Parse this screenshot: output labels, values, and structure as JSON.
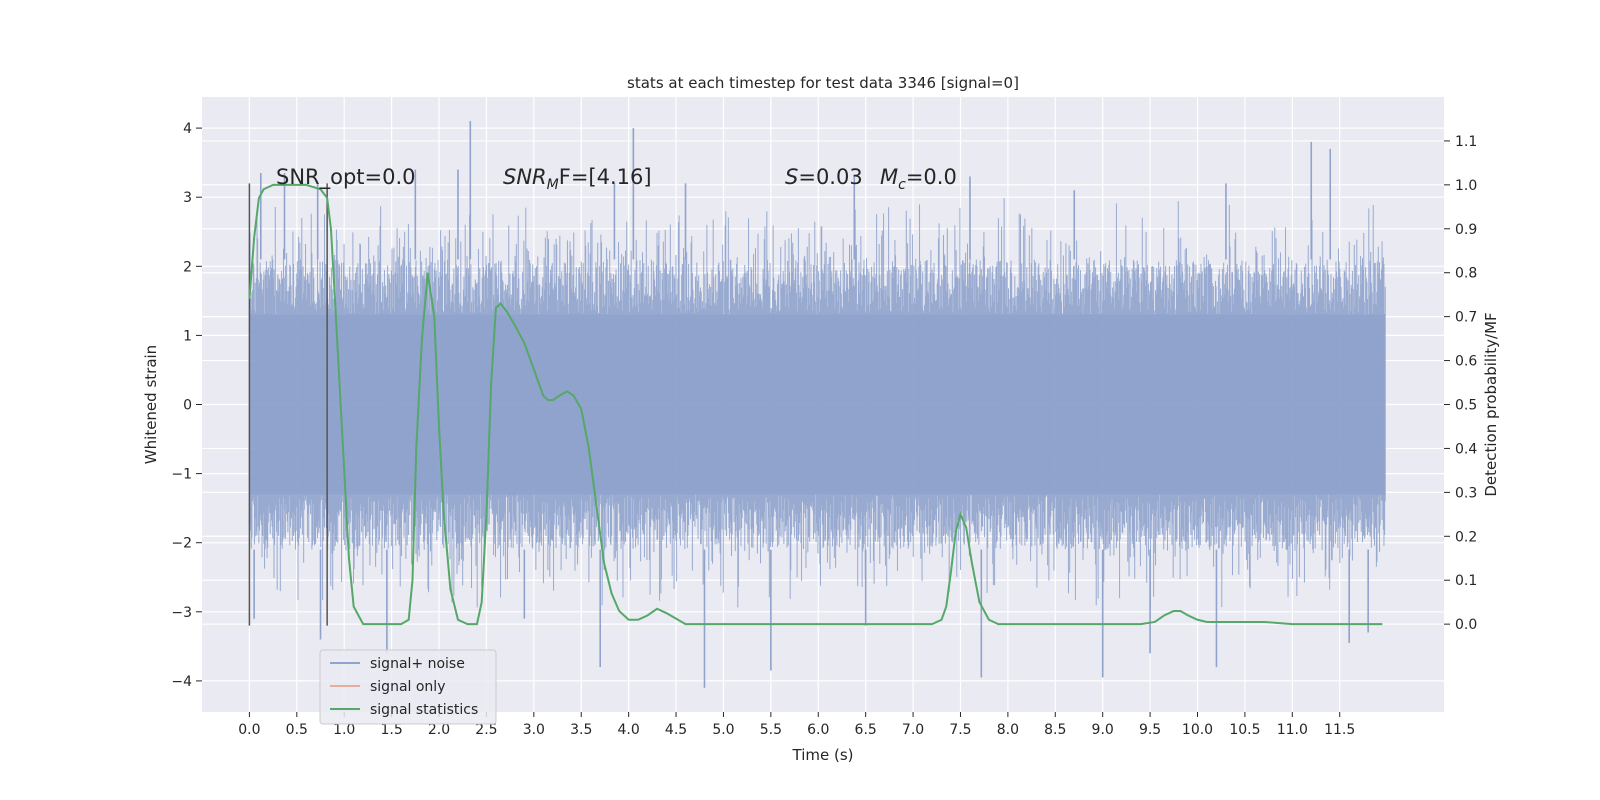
{
  "chart_data": {
    "type": "line",
    "title": "stats at each timestep for test data 3346 [signal=0]",
    "xlabel": "Time (s)",
    "ylabel_left": "Whitened strain",
    "ylabel_right": "Detection probability/MF",
    "xlim": [
      -0.5,
      12.6
    ],
    "ylim_left": [
      -4.45,
      4.45
    ],
    "ylim_right": [
      -0.2,
      1.2
    ],
    "x_ticks": [
      0.0,
      0.5,
      1.0,
      1.5,
      2.0,
      2.5,
      3.0,
      3.5,
      4.0,
      4.5,
      5.0,
      5.5,
      6.0,
      6.5,
      7.0,
      7.5,
      8.0,
      8.5,
      9.0,
      9.5,
      10.0,
      10.5,
      11.0,
      11.5
    ],
    "x_tick_labels": [
      "0.0",
      "0.5",
      "1.0",
      "1.5",
      "2.0",
      "2.5",
      "3.0",
      "3.5",
      "4.0",
      "4.5",
      "5.0",
      "5.5",
      "6.0",
      "6.5",
      "7.0",
      "7.5",
      "8.0",
      "8.5",
      "9.0",
      "9.5",
      "10.0",
      "10.5",
      "11.0",
      "11.5"
    ],
    "y_left_ticks": [
      -4,
      -3,
      -2,
      -1,
      0,
      1,
      2,
      3,
      4
    ],
    "y_left_tick_labels": [
      "−4",
      "−3",
      "−2",
      "−1",
      "0",
      "1",
      "2",
      "3",
      "4"
    ],
    "y_right_ticks": [
      0.0,
      0.1,
      0.2,
      0.3,
      0.4,
      0.5,
      0.6,
      0.7,
      0.8,
      0.9,
      1.0,
      1.1
    ],
    "y_right_tick_labels": [
      "0.0",
      "0.1",
      "0.2",
      "0.3",
      "0.4",
      "0.5",
      "0.6",
      "0.7",
      "0.8",
      "0.9",
      "1.0",
      "1.1"
    ],
    "grid": true,
    "legend_position": "lower-left",
    "annotations": {
      "snr_opt": "SNR_opt=0.0",
      "snr_mf_base": "SNR",
      "snr_mf_sub": "M",
      "snr_mf_rest": "F=[4.16]",
      "s_base": "S",
      "s_rest": "=0.03",
      "mc_base": "M",
      "mc_sub": "c",
      "mc_rest": "=0.0"
    },
    "vertical_lines_x": [
      0.0,
      0.82
    ],
    "vertical_lines_range": [
      -3.2,
      3.2
    ],
    "series": [
      {
        "name": "signal+ noise",
        "color": "#8fa3cc",
        "axis": "left",
        "description_range": [
          0.0,
          11.98
        ],
        "envelope": {
          "core_band": [
            -1.3,
            1.3
          ],
          "typical_band": [
            -2.1,
            2.1
          ],
          "peak_band": [
            -3.0,
            3.0
          ]
        },
        "spikes": [
          {
            "x": 0.12,
            "y": 3.35
          },
          {
            "x": 0.37,
            "y": 3.35
          },
          {
            "x": 0.72,
            "y": 3.2
          },
          {
            "x": 2.33,
            "y": 4.1
          },
          {
            "x": 2.2,
            "y": 3.4
          },
          {
            "x": 1.75,
            "y": 3.4
          },
          {
            "x": 4.05,
            "y": 4.0
          },
          {
            "x": 4.6,
            "y": 3.2
          },
          {
            "x": 3.85,
            "y": 3.2
          },
          {
            "x": 6.38,
            "y": 3.3
          },
          {
            "x": 7.6,
            "y": 3.3
          },
          {
            "x": 8.7,
            "y": 3.1
          },
          {
            "x": 11.2,
            "y": 3.8
          },
          {
            "x": 11.4,
            "y": 3.7
          },
          {
            "x": 10.3,
            "y": 3.2
          },
          {
            "x": 4.8,
            "y": -4.1
          },
          {
            "x": 5.5,
            "y": -3.85
          },
          {
            "x": 7.72,
            "y": -3.95
          },
          {
            "x": 9.0,
            "y": -3.95
          },
          {
            "x": 10.2,
            "y": -3.8
          },
          {
            "x": 3.7,
            "y": -3.8
          },
          {
            "x": 1.45,
            "y": -3.6
          },
          {
            "x": 0.75,
            "y": -3.4
          },
          {
            "x": 9.5,
            "y": -3.6
          },
          {
            "x": 11.6,
            "y": -3.45
          },
          {
            "x": 2.9,
            "y": -3.1
          },
          {
            "x": 6.5,
            "y": -3.2
          },
          {
            "x": 0.05,
            "y": -3.1
          },
          {
            "x": 11.8,
            "y": -3.3
          }
        ]
      },
      {
        "name": "signal only",
        "color": "#e5ae9a",
        "axis": "left",
        "x": [],
        "y": []
      },
      {
        "name": "signal statistics",
        "color": "#55a868",
        "axis": "right",
        "x": [
          0.0,
          0.05,
          0.1,
          0.15,
          0.25,
          0.4,
          0.6,
          0.75,
          0.82,
          0.86,
          0.9,
          0.95,
          1.0,
          1.05,
          1.1,
          1.2,
          1.35,
          1.5,
          1.6,
          1.68,
          1.72,
          1.76,
          1.82,
          1.88,
          1.95,
          2.0,
          2.05,
          2.12,
          2.2,
          2.3,
          2.4,
          2.45,
          2.5,
          2.55,
          2.6,
          2.65,
          2.72,
          2.8,
          2.9,
          3.0,
          3.1,
          3.15,
          3.2,
          3.27,
          3.35,
          3.42,
          3.5,
          3.58,
          3.66,
          3.74,
          3.82,
          3.9,
          4.0,
          4.1,
          4.2,
          4.3,
          4.4,
          4.6,
          4.8,
          5.0,
          5.2,
          5.6,
          6.0,
          6.4,
          6.8,
          7.2,
          7.3,
          7.35,
          7.4,
          7.45,
          7.5,
          7.56,
          7.62,
          7.7,
          7.8,
          7.9,
          8.2,
          8.6,
          9.0,
          9.4,
          9.55,
          9.65,
          9.75,
          9.82,
          9.9,
          10.0,
          10.1,
          10.3,
          10.5,
          10.7,
          11.0,
          11.5,
          11.95
        ],
        "y": [
          0.74,
          0.88,
          0.97,
          0.99,
          1.0,
          1.0,
          1.0,
          0.99,
          0.97,
          0.9,
          0.75,
          0.55,
          0.35,
          0.15,
          0.04,
          0.0,
          0.0,
          0.0,
          0.0,
          0.01,
          0.1,
          0.4,
          0.65,
          0.8,
          0.7,
          0.45,
          0.25,
          0.08,
          0.01,
          0.0,
          0.0,
          0.05,
          0.25,
          0.55,
          0.72,
          0.73,
          0.71,
          0.68,
          0.64,
          0.58,
          0.52,
          0.51,
          0.51,
          0.52,
          0.53,
          0.52,
          0.49,
          0.4,
          0.27,
          0.14,
          0.07,
          0.03,
          0.01,
          0.01,
          0.02,
          0.035,
          0.025,
          0.0,
          0.0,
          0.0,
          0.0,
          0.0,
          0.0,
          0.0,
          0.0,
          0.0,
          0.01,
          0.04,
          0.12,
          0.21,
          0.25,
          0.22,
          0.14,
          0.05,
          0.01,
          0.0,
          0.0,
          0.0,
          0.0,
          0.0,
          0.005,
          0.02,
          0.03,
          0.03,
          0.02,
          0.01,
          0.005,
          0.005,
          0.005,
          0.005,
          0.0,
          0.0,
          0.0
        ]
      }
    ]
  }
}
